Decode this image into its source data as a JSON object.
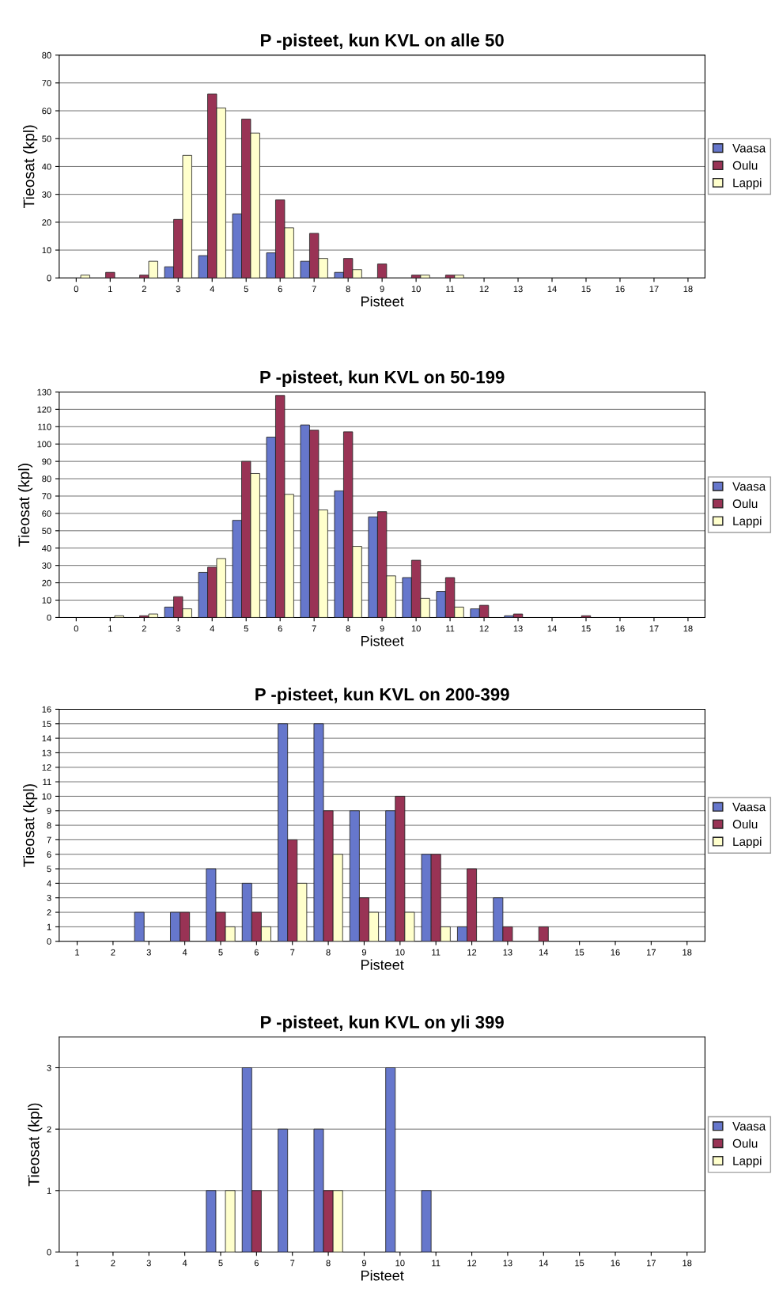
{
  "chart_data": [
    {
      "type": "bar",
      "title": "P -pisteet, kun KVL on alle 50",
      "xlabel": "Pisteet",
      "ylabel": "Tieosat (kpl)",
      "categories": [
        "0",
        "1",
        "2",
        "3",
        "4",
        "5",
        "6",
        "7",
        "8",
        "9",
        "10",
        "11",
        "12",
        "13",
        "14",
        "15",
        "16",
        "17",
        "18"
      ],
      "ylim": [
        0,
        80
      ],
      "yticks": [
        0,
        10,
        20,
        30,
        40,
        50,
        60,
        70,
        80
      ],
      "grid": "y",
      "legend": "right",
      "series": [
        {
          "name": "Vaasa",
          "color": "#6677cc",
          "values": [
            0,
            0,
            0,
            4,
            8,
            23,
            9,
            6,
            2,
            0,
            0,
            0,
            0,
            0,
            0,
            0,
            0,
            0,
            0
          ]
        },
        {
          "name": "Oulu",
          "color": "#993355",
          "values": [
            0,
            2,
            1,
            21,
            66,
            57,
            28,
            16,
            7,
            5,
            1,
            1,
            0,
            0,
            0,
            0,
            0,
            0,
            0
          ]
        },
        {
          "name": "Lappi",
          "color": "#ffffcc",
          "values": [
            1,
            0,
            6,
            44,
            61,
            52,
            18,
            7,
            3,
            0,
            1,
            1,
            0,
            0,
            0,
            0,
            0,
            0,
            0
          ]
        }
      ]
    },
    {
      "type": "bar",
      "title": "P -pisteet, kun KVL on 50-199",
      "xlabel": "Pisteet",
      "ylabel": "Tieosat (kpl)",
      "categories": [
        "0",
        "1",
        "2",
        "3",
        "4",
        "5",
        "6",
        "7",
        "8",
        "9",
        "10",
        "11",
        "12",
        "13",
        "14",
        "15",
        "16",
        "17",
        "18"
      ],
      "ylim": [
        0,
        130
      ],
      "yticks": [
        0,
        10,
        20,
        30,
        40,
        50,
        60,
        70,
        80,
        90,
        100,
        110,
        120,
        130
      ],
      "grid": "y",
      "legend": "right",
      "series": [
        {
          "name": "Vaasa",
          "color": "#6677cc",
          "values": [
            0,
            0,
            0,
            6,
            26,
            56,
            104,
            111,
            73,
            58,
            23,
            15,
            5,
            1,
            0,
            0,
            0,
            0,
            0
          ]
        },
        {
          "name": "Oulu",
          "color": "#993355",
          "values": [
            0,
            0,
            1,
            12,
            29,
            90,
            128,
            108,
            107,
            61,
            33,
            23,
            7,
            2,
            0,
            1,
            0,
            0,
            0
          ]
        },
        {
          "name": "Lappi",
          "color": "#ffffcc",
          "values": [
            0,
            1,
            2,
            5,
            34,
            83,
            71,
            62,
            41,
            24,
            11,
            6,
            0,
            0,
            0,
            0,
            0,
            0,
            0
          ]
        }
      ]
    },
    {
      "type": "bar",
      "title": "P -pisteet, kun KVL on 200-399",
      "xlabel": "Pisteet",
      "ylabel": "Tieosat (kpl)",
      "categories": [
        "1",
        "2",
        "3",
        "4",
        "5",
        "6",
        "7",
        "8",
        "9",
        "10",
        "11",
        "12",
        "13",
        "14",
        "15",
        "16",
        "17",
        "18"
      ],
      "ylim": [
        0,
        16
      ],
      "yticks": [
        0,
        1,
        2,
        3,
        4,
        5,
        6,
        7,
        8,
        9,
        10,
        11,
        12,
        13,
        14,
        15,
        16
      ],
      "grid": "y",
      "legend": "right",
      "series": [
        {
          "name": "Vaasa",
          "color": "#6677cc",
          "values": [
            0,
            0,
            2,
            2,
            5,
            4,
            15,
            15,
            9,
            9,
            6,
            1,
            3,
            0,
            0,
            0,
            0,
            0
          ]
        },
        {
          "name": "Oulu",
          "color": "#993355",
          "values": [
            0,
            0,
            0,
            2,
            2,
            2,
            7,
            9,
            3,
            10,
            6,
            5,
            1,
            1,
            0,
            0,
            0,
            0
          ]
        },
        {
          "name": "Lappi",
          "color": "#ffffcc",
          "values": [
            0,
            0,
            0,
            0,
            1,
            1,
            4,
            6,
            2,
            2,
            1,
            0,
            0,
            0,
            0,
            0,
            0,
            0
          ]
        }
      ]
    },
    {
      "type": "bar",
      "title": "P -pisteet, kun KVL on yli 399",
      "xlabel": "Pisteet",
      "ylabel": "Tieosat (kpl)",
      "categories": [
        "1",
        "2",
        "3",
        "4",
        "5",
        "6",
        "7",
        "8",
        "9",
        "10",
        "11",
        "12",
        "13",
        "14",
        "15",
        "16",
        "17",
        "18"
      ],
      "ylim": [
        0,
        3.5
      ],
      "yticks": [
        0,
        1,
        2,
        3
      ],
      "grid": "y",
      "legend": "right",
      "series": [
        {
          "name": "Vaasa",
          "color": "#6677cc",
          "values": [
            0,
            0,
            0,
            0,
            1,
            3,
            2,
            2,
            0,
            3,
            1,
            0,
            0,
            0,
            0,
            0,
            0,
            0
          ]
        },
        {
          "name": "Oulu",
          "color": "#993355",
          "values": [
            0,
            0,
            0,
            0,
            0,
            1,
            0,
            1,
            0,
            0,
            0,
            0,
            0,
            0,
            0,
            0,
            0,
            0
          ]
        },
        {
          "name": "Lappi",
          "color": "#ffffcc",
          "values": [
            0,
            0,
            0,
            0,
            1,
            0,
            0,
            1,
            0,
            0,
            0,
            0,
            0,
            0,
            0,
            0,
            0,
            0
          ]
        }
      ]
    }
  ]
}
